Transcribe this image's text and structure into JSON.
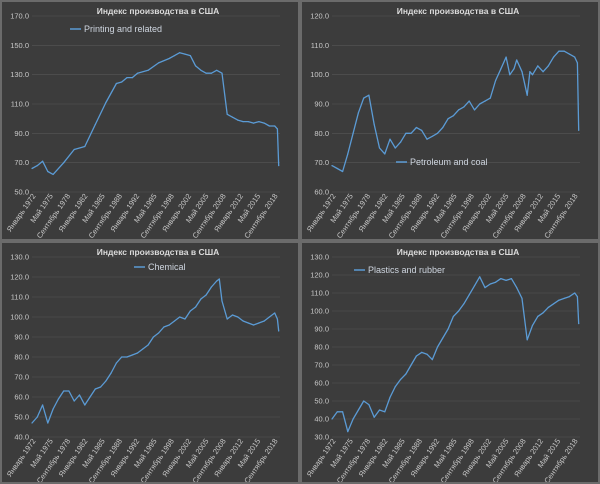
{
  "colors": {
    "line": "#5b9bd5",
    "grid": "#555555",
    "panel": "#3c3c3c",
    "background": "#6b6b6b",
    "text": "#c8c8c8"
  },
  "chart_data": [
    {
      "type": "line",
      "title": "Индекс производства в США",
      "series": [
        {
          "name": "Printing and related",
          "x": [
            1972,
            1973,
            1974,
            1975,
            1976,
            1978,
            1980,
            1982,
            1984,
            1986,
            1988,
            1989,
            1990,
            1991,
            1992,
            1994,
            1996,
            1998,
            1999,
            2000,
            2001,
            2002,
            2003,
            2004,
            2005,
            2006,
            2007,
            2008,
            2009,
            2010,
            2011,
            2012,
            2013,
            2014,
            2015,
            2016,
            2017,
            2018,
            2018.5,
            2018.75
          ],
          "values": [
            66,
            68,
            71,
            64,
            62,
            70,
            79,
            81,
            96,
            111,
            124,
            125,
            128,
            128,
            131,
            133,
            138,
            141,
            143,
            145,
            144,
            143,
            136,
            133,
            131,
            131,
            133,
            131,
            103,
            101,
            99,
            98,
            98,
            97,
            98,
            97,
            95,
            95,
            93,
            68
          ]
        }
      ],
      "x_tick_labels": [
        "Январь 1972",
        "Май 1975",
        "Сентябрь 1978",
        "Январь 1982",
        "Май 1985",
        "Сентябрь 1988",
        "Январь 1992",
        "Май 1995",
        "Сентябрь 1998",
        "Январь 2002",
        "Май 2005",
        "Сентябрь 2008",
        "Январь 2012",
        "Май 2015",
        "Сентябрь 2018"
      ],
      "ylim": [
        50,
        170
      ],
      "y_tick_labels": [
        "50.0",
        "70.0",
        "90.0",
        "110.0",
        "130.0",
        "150.0",
        "170.0"
      ],
      "legend": "top-left"
    },
    {
      "type": "line",
      "title": "Индекс производства в США",
      "series": [
        {
          "name": "Petroleum and coal",
          "x": [
            1972,
            1973,
            1974,
            1975,
            1976,
            1977,
            1978,
            1979,
            1980,
            1981,
            1982,
            1983,
            1984,
            1985,
            1986,
            1987,
            1988,
            1989,
            1990,
            1991,
            1992,
            1993,
            1994,
            1995,
            1996,
            1997,
            1998,
            1999,
            2000,
            2001,
            2002,
            2003,
            2004,
            2005,
            2005.7,
            2006.5,
            2007,
            2008,
            2009,
            2009.5,
            2010,
            2011,
            2012,
            2013,
            2014,
            2015,
            2016,
            2017,
            2018,
            2018.5,
            2018.75
          ],
          "values": [
            69,
            68,
            67,
            73,
            80,
            87,
            92,
            93,
            83,
            75,
            73,
            78,
            75,
            77,
            80,
            80,
            82,
            81,
            78,
            79,
            80,
            82,
            85,
            86,
            88,
            89,
            91,
            88,
            90,
            91,
            92,
            98,
            102,
            106,
            100,
            102,
            105,
            101,
            93,
            101,
            100,
            103,
            101,
            103,
            106,
            108,
            108,
            107,
            106,
            104,
            81
          ]
        }
      ],
      "x_tick_labels": [
        "Январь 1972",
        "Май 1975",
        "Сентябрь 1978",
        "Январь 1982",
        "Май 1985",
        "Сентябрь 1988",
        "Январь 1992",
        "Май 1995",
        "Сентябрь 1998",
        "Январь 2002",
        "Май 2005",
        "Сентябрь 2008",
        "Январь 2012",
        "Май 2015",
        "Сентябрь 2018"
      ],
      "ylim": [
        60,
        120
      ],
      "y_tick_labels": [
        "60.0",
        "70.0",
        "80.0",
        "90.0",
        "100.0",
        "110.0",
        "120.0"
      ],
      "legend": "bottom-center"
    },
    {
      "type": "line",
      "title": "Индекс производства в США",
      "series": [
        {
          "name": "Chemical",
          "x": [
            1972,
            1973,
            1974,
            1975,
            1976,
            1977,
            1978,
            1979,
            1980,
            1981,
            1982,
            1983,
            1984,
            1985,
            1986,
            1987,
            1988,
            1989,
            1990,
            1991,
            1992,
            1993,
            1994,
            1995,
            1996,
            1997,
            1998,
            1999,
            2000,
            2001,
            2002,
            2003,
            2004,
            2005,
            2006,
            2007,
            2007.5,
            2008,
            2009,
            2010,
            2011,
            2012,
            2013,
            2014,
            2015,
            2016,
            2017,
            2018,
            2018.5,
            2018.75
          ],
          "values": [
            47,
            50,
            56,
            47,
            54,
            59,
            63,
            63,
            58,
            61,
            56,
            60,
            64,
            65,
            68,
            72,
            77,
            80,
            80,
            81,
            82,
            84,
            86,
            90,
            92,
            95,
            96,
            98,
            100,
            99,
            103,
            105,
            109,
            111,
            115,
            118,
            119,
            108,
            99,
            101,
            100,
            98,
            97,
            96,
            97,
            98,
            100,
            102,
            99,
            93
          ]
        }
      ],
      "x_tick_labels": [
        "Январь 1972",
        "Май 1975",
        "Сентябрь 1978",
        "Январь 1982",
        "Май 1985",
        "Сентябрь 1988",
        "Январь 1992",
        "Май 1995",
        "Сентябрь 1998",
        "Январь 2002",
        "Май 2005",
        "Сентябрь 2008",
        "Январь 2012",
        "Май 2015",
        "Сентябрь 2018"
      ],
      "ylim": [
        40,
        130
      ],
      "y_tick_labels": [
        "40.0",
        "50.0",
        "60.0",
        "70.0",
        "80.0",
        "90.0",
        "100.0",
        "110.0",
        "120.0",
        "130.0"
      ],
      "legend": "top-left"
    },
    {
      "type": "line",
      "title": "Индекс производства в США",
      "series": [
        {
          "name": "Plastics and rubber",
          "x": [
            1972,
            1973,
            1974,
            1975,
            1976,
            1977,
            1978,
            1979,
            1980,
            1981,
            1982,
            1983,
            1984,
            1985,
            1986,
            1987,
            1988,
            1989,
            1990,
            1991,
            1992,
            1993,
            1994,
            1995,
            1996,
            1997,
            1998,
            1999,
            2000,
            2001,
            2002,
            2003,
            2004,
            2005,
            2006,
            2007,
            2008,
            2009,
            2010,
            2011,
            2012,
            2013,
            2014,
            2015,
            2016,
            2017,
            2018,
            2018.5,
            2018.75
          ],
          "values": [
            40,
            44,
            44,
            33,
            40,
            45,
            50,
            48,
            41,
            45,
            44,
            52,
            58,
            62,
            65,
            70,
            75,
            77,
            76,
            73,
            80,
            85,
            90,
            97,
            100,
            104,
            109,
            114,
            119,
            113,
            115,
            116,
            118,
            117,
            118,
            113,
            107,
            84,
            92,
            97,
            99,
            102,
            104,
            106,
            107,
            108,
            110,
            108,
            93
          ]
        }
      ],
      "x_tick_labels": [
        "Январь 1972",
        "Май 1975",
        "Сентябрь 1978",
        "Январь 1982",
        "Май 1985",
        "Сентябрь 1988",
        "Январь 1992",
        "Май 1995",
        "Сентябрь 1998",
        "Январь 2002",
        "Май 2005",
        "Сентябрь 2008",
        "Январь 2012",
        "Май 2015",
        "Сентябрь 2018"
      ],
      "ylim": [
        30,
        130
      ],
      "y_tick_labels": [
        "30.0",
        "40.0",
        "50.0",
        "60.0",
        "70.0",
        "80.0",
        "90.0",
        "100.0",
        "110.0",
        "120.0",
        "130.0"
      ],
      "legend": "top-left"
    }
  ]
}
